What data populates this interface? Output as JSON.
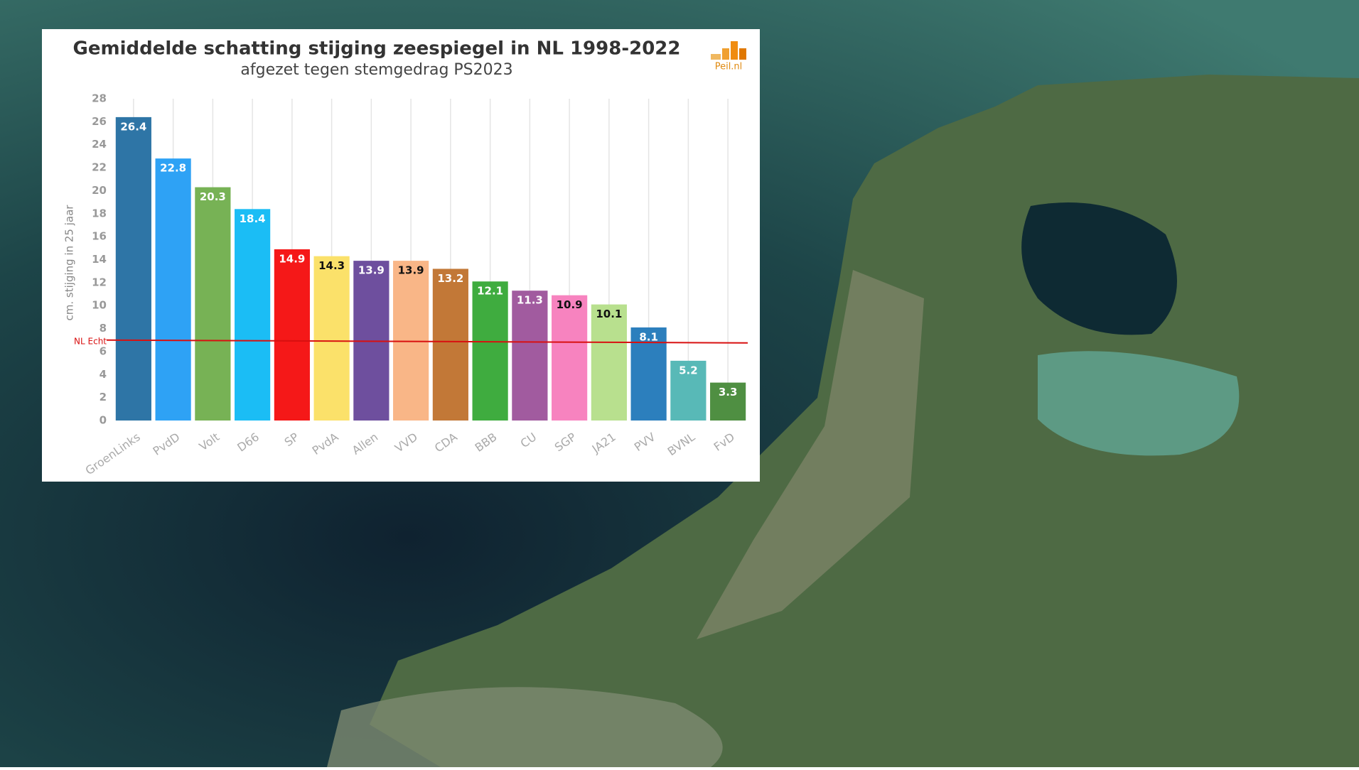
{
  "chart_data": {
    "type": "bar",
    "title": "Gemiddelde schatting stijging zeespiegel in NL 1998-2022",
    "subtitle": "afgezet tegen stemgedrag PS2023",
    "logo": "Peil.nl",
    "y_label": "cm. stijging in 25 jaar",
    "categories": [
      "GroenLinks",
      "PvdD",
      "Volt",
      "D66",
      "SP",
      "PvdA",
      "Allen",
      "VVD",
      "CDA",
      "BBB",
      "CU",
      "SGP",
      "JA21",
      "PVV",
      "BVNL",
      "FvD"
    ],
    "values": [
      26.4,
      22.8,
      20.3,
      18.4,
      14.9,
      14.3,
      13.9,
      13.9,
      13.2,
      12.1,
      11.3,
      10.9,
      10.1,
      8.1,
      5.2,
      3.3
    ],
    "colors": [
      "#2e75a6",
      "#2ea2f5",
      "#77b255",
      "#1bbdf5",
      "#f51818",
      "#fbe16a",
      "#6e4f9e",
      "#f9b687",
      "#c27837",
      "#3fac3f",
      "#a15b9f",
      "#f783bf",
      "#b8e08e",
      "#2c7fbd",
      "#58b9b7",
      "#4f8f42"
    ],
    "reference": {
      "value": 7,
      "label": "NL Echt",
      "color": "#d81010"
    },
    "ylim": [
      0,
      28
    ],
    "yticks": [
      0,
      2,
      4,
      6,
      8,
      10,
      12,
      14,
      16,
      18,
      20,
      22,
      24,
      26,
      28
    ],
    "grid": true
  }
}
